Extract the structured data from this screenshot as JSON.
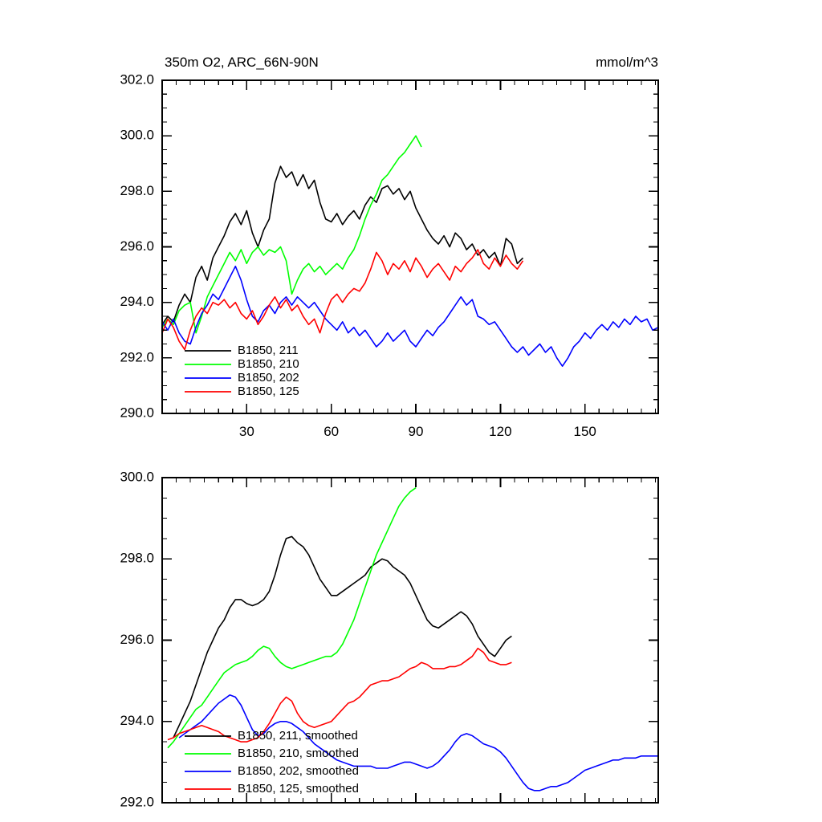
{
  "figure": {
    "background": "#ffffff"
  },
  "chart_data": [
    {
      "type": "line",
      "title": "350m O2, ARC_66N-90N",
      "units_label": "mmol/m^3",
      "xlim": [
        0,
        176
      ],
      "ylim": [
        290.0,
        302.0
      ],
      "xticks": [
        30,
        60,
        90,
        120,
        150
      ],
      "yticks": [
        290.0,
        292.0,
        294.0,
        296.0,
        298.0,
        300.0,
        302.0
      ],
      "x_minor_step": 5,
      "y_minor_step": 0.5,
      "x_tick_labels_visible": true,
      "grid": false,
      "legend": {
        "position": "inside-lower-left",
        "entries": [
          {
            "label": "B1850, 211",
            "color": "#000000"
          },
          {
            "label": "B1850, 210",
            "color": "#00ff00"
          },
          {
            "label": "B1850, 202",
            "color": "#0000ff"
          },
          {
            "label": "B1850, 125",
            "color": "#ff0000"
          }
        ]
      },
      "series": [
        {
          "name": "B1850, 211",
          "color": "#000000",
          "x_start": 0,
          "x_step": 2,
          "values": [
            293.2,
            293.5,
            293.3,
            293.9,
            294.3,
            294.0,
            294.9,
            295.3,
            294.8,
            295.6,
            296.0,
            296.4,
            296.9,
            297.2,
            296.8,
            297.3,
            296.5,
            296.0,
            296.6,
            297.0,
            298.3,
            298.9,
            298.5,
            298.7,
            298.2,
            298.6,
            298.1,
            298.4,
            297.6,
            297.0,
            296.9,
            297.2,
            296.8,
            297.1,
            297.3,
            297.0,
            297.5,
            297.8,
            297.6,
            298.1,
            298.2,
            297.9,
            298.1,
            297.7,
            298.0,
            297.4,
            297.0,
            296.6,
            296.3,
            296.1,
            296.4,
            296.0,
            296.5,
            296.3,
            295.9,
            296.1,
            295.7,
            295.9,
            295.6,
            295.8,
            295.3,
            296.3,
            296.1,
            295.4,
            295.6
          ]
        },
        {
          "name": "B1850, 210",
          "color": "#00ff00",
          "x_start": 0,
          "x_step": 2,
          "values": [
            293.1,
            293.4,
            293.2,
            293.7,
            293.9,
            294.0,
            292.9,
            293.5,
            294.2,
            294.6,
            295.0,
            295.4,
            295.8,
            295.5,
            295.9,
            295.4,
            295.8,
            296.0,
            295.7,
            295.9,
            295.8,
            296.0,
            295.5,
            294.3,
            294.8,
            295.2,
            295.4,
            295.1,
            295.3,
            295.0,
            295.2,
            295.4,
            295.2,
            295.6,
            295.9,
            296.4,
            297.0,
            297.5,
            297.9,
            298.4,
            298.6,
            298.9,
            299.2,
            299.4,
            299.7,
            300.0,
            299.6
          ]
        },
        {
          "name": "B1850, 202",
          "color": "#0000ff",
          "x_start": 0,
          "x_step": 2,
          "values": [
            293.3,
            293.0,
            293.4,
            292.9,
            292.6,
            292.5,
            293.1,
            293.6,
            293.9,
            294.3,
            294.1,
            294.5,
            294.9,
            295.3,
            294.8,
            294.1,
            293.5,
            293.3,
            293.7,
            293.9,
            293.6,
            294.0,
            294.2,
            293.9,
            294.2,
            294.0,
            293.8,
            294.0,
            293.7,
            293.4,
            293.2,
            293.0,
            293.3,
            292.9,
            293.1,
            292.8,
            293.0,
            292.7,
            292.4,
            292.6,
            292.9,
            292.6,
            292.8,
            293.0,
            292.6,
            292.4,
            292.7,
            293.0,
            292.8,
            293.1,
            293.3,
            293.6,
            293.9,
            294.2,
            293.9,
            294.1,
            293.5,
            293.4,
            293.2,
            293.3,
            293.0,
            292.7,
            292.4,
            292.2,
            292.4,
            292.1,
            292.3,
            292.5,
            292.2,
            292.4,
            292.0,
            291.7,
            292.0,
            292.4,
            292.6,
            292.9,
            292.7,
            293.0,
            293.2,
            293.0,
            293.3,
            293.1,
            293.4,
            293.2,
            293.5,
            293.3,
            293.4,
            293.0,
            293.1
          ]
        },
        {
          "name": "B1850, 125",
          "color": "#ff0000",
          "x_start": 0,
          "x_step": 2,
          "values": [
            292.9,
            293.4,
            293.1,
            292.6,
            292.3,
            293.0,
            293.5,
            293.8,
            293.6,
            294.0,
            293.9,
            294.1,
            293.8,
            294.0,
            293.6,
            293.4,
            293.7,
            293.2,
            293.5,
            293.9,
            294.2,
            293.8,
            294.1,
            293.7,
            293.9,
            293.5,
            293.2,
            293.4,
            292.9,
            293.6,
            294.1,
            294.3,
            294.0,
            294.3,
            294.5,
            294.4,
            294.7,
            295.2,
            295.8,
            295.5,
            295.0,
            295.4,
            295.2,
            295.5,
            295.1,
            295.6,
            295.3,
            294.9,
            295.2,
            295.4,
            295.1,
            294.8,
            295.3,
            295.1,
            295.4,
            295.6,
            295.9,
            295.4,
            295.2,
            295.6,
            295.3,
            295.7,
            295.4,
            295.2,
            295.5
          ]
        }
      ]
    },
    {
      "type": "line",
      "title": "",
      "units_label": "",
      "xlim": [
        0,
        176
      ],
      "ylim": [
        292.0,
        300.0
      ],
      "xticks": [
        30,
        60,
        90,
        120,
        150
      ],
      "yticks": [
        292.0,
        294.0,
        296.0,
        298.0,
        300.0
      ],
      "x_minor_step": 5,
      "y_minor_step": 0.5,
      "x_tick_labels_visible": false,
      "grid": false,
      "legend": {
        "position": "inside-lower-left",
        "entries": [
          {
            "label": "B1850, 211, smoothed",
            "color": "#000000"
          },
          {
            "label": "B1850, 210, smoothed",
            "color": "#00ff00"
          },
          {
            "label": "B1850, 202, smoothed",
            "color": "#0000ff"
          },
          {
            "label": "B1850, 125, smoothed",
            "color": "#ff0000"
          }
        ]
      },
      "series": [
        {
          "name": "B1850, 211, smoothed",
          "color": "#000000",
          "x_start": 4,
          "x_step": 2,
          "values": [
            293.6,
            293.9,
            294.2,
            294.5,
            294.9,
            295.3,
            295.7,
            296.0,
            296.3,
            296.5,
            296.8,
            297.0,
            297.0,
            296.9,
            296.85,
            296.9,
            297.0,
            297.2,
            297.6,
            298.1,
            298.5,
            298.55,
            298.4,
            298.3,
            298.1,
            297.8,
            297.5,
            297.3,
            297.1,
            297.1,
            297.2,
            297.3,
            297.4,
            297.5,
            297.6,
            297.8,
            297.9,
            298.0,
            297.95,
            297.8,
            297.7,
            297.6,
            297.4,
            297.1,
            296.8,
            296.5,
            296.35,
            296.3,
            296.4,
            296.5,
            296.6,
            296.7,
            296.6,
            296.4,
            296.1,
            295.9,
            295.7,
            295.6,
            295.8,
            296.0,
            296.1
          ]
        },
        {
          "name": "B1850, 210, smoothed",
          "color": "#00ff00",
          "x_start": 2,
          "x_step": 2,
          "values": [
            293.35,
            293.5,
            293.7,
            293.9,
            294.1,
            294.3,
            294.4,
            294.6,
            294.8,
            295.0,
            295.2,
            295.3,
            295.4,
            295.45,
            295.5,
            295.6,
            295.75,
            295.85,
            295.8,
            295.6,
            295.45,
            295.35,
            295.3,
            295.35,
            295.4,
            295.45,
            295.5,
            295.55,
            295.6,
            295.6,
            295.7,
            295.9,
            296.2,
            296.5,
            296.9,
            297.3,
            297.7,
            298.1,
            298.4,
            298.7,
            299.0,
            299.3,
            299.5,
            299.65,
            299.75
          ]
        },
        {
          "name": "B1850, 202, smoothed",
          "color": "#0000ff",
          "x_start": 6,
          "x_step": 2,
          "values": [
            293.6,
            293.7,
            293.8,
            293.9,
            294.0,
            294.15,
            294.3,
            294.45,
            294.55,
            294.65,
            294.6,
            294.4,
            294.1,
            293.8,
            293.65,
            293.7,
            293.85,
            293.95,
            294.0,
            294.0,
            293.95,
            293.85,
            293.75,
            293.6,
            293.45,
            293.35,
            293.25,
            293.15,
            293.05,
            293.0,
            292.95,
            292.9,
            292.9,
            292.9,
            292.9,
            292.85,
            292.85,
            292.85,
            292.9,
            292.95,
            293.0,
            293.0,
            292.95,
            292.9,
            292.85,
            292.9,
            293.0,
            293.15,
            293.3,
            293.5,
            293.65,
            293.7,
            293.65,
            293.55,
            293.45,
            293.4,
            293.35,
            293.25,
            293.1,
            292.9,
            292.7,
            292.5,
            292.35,
            292.3,
            292.3,
            292.35,
            292.4,
            292.4,
            292.45,
            292.5,
            292.6,
            292.7,
            292.8,
            292.85,
            292.9,
            292.95,
            293.0,
            293.05,
            293.05,
            293.1,
            293.1,
            293.1,
            293.15,
            293.15,
            293.15,
            293.15
          ]
        },
        {
          "name": "B1850, 125, smoothed",
          "color": "#ff0000",
          "x_start": 2,
          "x_step": 2,
          "values": [
            293.55,
            293.6,
            293.7,
            293.75,
            293.8,
            293.85,
            293.9,
            293.85,
            293.8,
            293.75,
            293.65,
            293.6,
            293.55,
            293.5,
            293.5,
            293.55,
            293.6,
            293.75,
            293.95,
            294.2,
            294.45,
            294.6,
            294.5,
            294.2,
            294.0,
            293.9,
            293.85,
            293.9,
            293.95,
            294.0,
            294.15,
            294.3,
            294.45,
            294.5,
            294.6,
            294.75,
            294.9,
            294.95,
            295.0,
            295.0,
            295.05,
            295.1,
            295.2,
            295.3,
            295.35,
            295.45,
            295.4,
            295.3,
            295.3,
            295.3,
            295.35,
            295.35,
            295.4,
            295.5,
            295.6,
            295.8,
            295.7,
            295.5,
            295.45,
            295.4,
            295.4,
            295.45
          ]
        }
      ]
    }
  ]
}
